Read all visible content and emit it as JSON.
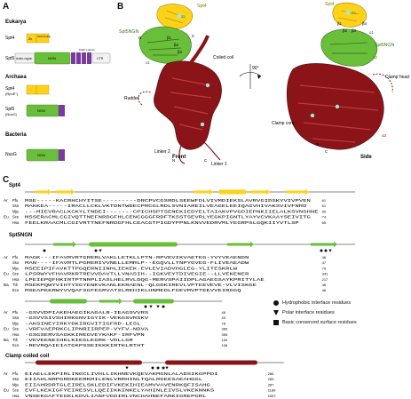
{
  "panelA": {
    "letter": "A",
    "eukarya": {
      "heading": "Eukarya",
      "spt4": {
        "name": "Spt4",
        "zn": "Zn",
        "ngn_binding": "NGN binding"
      },
      "spt5": {
        "name": "Spt5",
        "acidic": "Acidic region",
        "ngn": "NGN",
        "kow": "KOW 1-4(1-4)",
        "ctr": "CTR"
      }
    },
    "archaea": {
      "heading": "Archaea",
      "spt4": {
        "name": "Spt4",
        "alt": "(RpoE\")"
      },
      "spt5": {
        "name": "Spt5",
        "alt": "(NusG)",
        "ngn": "NGN"
      }
    },
    "bacteria": {
      "heading": "Bacteria",
      "nusg": {
        "name": "NusG",
        "ngn": "NGN"
      }
    }
  },
  "panelB": {
    "letter": "B",
    "front": {
      "caption": "Front",
      "labels": [
        "Spt4",
        "Zn",
        "Spt5NGN",
        "Coiled coil",
        "Rudder",
        "rClamp",
        "Linker 2",
        "Linker 1",
        "N",
        "C",
        "C",
        "N",
        "β1",
        "β2",
        "β3",
        "α1",
        "α8",
        "α9"
      ]
    },
    "rotation": "90°",
    "side": {
      "caption": "Side",
      "labels": [
        "Spt4",
        "Zn",
        "Spt5NGN",
        "Clamp head",
        "Clamp core",
        "α4B",
        "α3",
        "α5",
        "α9",
        "α8",
        "β1",
        "β2",
        "β3",
        "β4",
        "α1",
        "α2",
        "N",
        "C"
      ]
    }
  },
  "panelC": {
    "letter": "C",
    "spt4": {
      "title": "Spt4",
      "rows": [
        {
          "grp": "Ar",
          "org": "Pfu",
          "seq": "MSE-----KACRHCHYITSE---------DRCPVCGSRDLSEEWFDLVIVMDIEKSLAVRVGIDSKYVIVPVEN",
          "end": "61"
        },
        {
          "grp": "",
          "org": "Sso",
          "seq": "MAKKEA-----IRACLLCKLVKTDNTWDECPRCGLRDLSVNIAREILVEAGELEEIQAGVHIVAKSVIVFNRD",
          "end": "61"
        },
        {
          "grp": "",
          "org": "Mja",
          "seq": "---MIEVRACLKCKYLTNDEI-------CPICHSPTSENEKIEDYELTAIAKVPVGDIEPNKIIELALKSVNSHNE",
          "end": "59"
        },
        {
          "grp": "Eu",
          "org": "Sce",
          "seq": "MSSERACMLCGIVQTTNEFNRDGFHLCENCGGGFRDFTKSSTSEVRLYEGKPIGNTLYAYVCVKAAYSEIVITG",
          "end": "74"
        },
        {
          "grp": "",
          "org": "Hsa",
          "seq": "FEELKRAACMLCGIVRTTNEFNRDGFHLCEACGTPIGDYPPNLKNVVEDRVMLYEGRPSLGQKIIYVTLSP",
          "end": "65"
        }
      ]
    },
    "spt5ngn": {
      "title": "Spt5NGN",
      "rows": [
        {
          "grp": "Ar",
          "org": "Pfu",
          "seq": "MAGK---IFAVRVRTGRERLVAKLLETKLLPTN-RPVEVIKVAETEG-YVYVEAENDN",
          "end": "46"
        },
        {
          "grp": "",
          "org": "Sso",
          "seq": "MAN----IFAVRTLPGRERIVVNELLEMRLP--EGQVLLTNPYGVEG-FLIVEAEADW",
          "end": "47"
        },
        {
          "grp": "",
          "org": "Mja",
          "seq": "MSEEIPIFAVKTTPGQERNIINHLIEKEK-EVLEVIADVHGLEG-YLITESKRLW",
          "end": "79"
        },
        {
          "grp": "Eu",
          "org": "Sce",
          "seq": "LPSRWYVFHAVRKRTREVVDAVTLLVNASIH--IGKVEYTDIVEGIE--LLVEKENER",
          "end": "341"
        },
        {
          "grp": "",
          "org": "Hsa",
          "seq": "LPEIEPQFHKIRTPTNRPLIASLHELRVLDQG-MERVSPAIIDPLAGAEGSAYKPRITYLAE",
          "end": "217"
        },
        {
          "grp": "Ba",
          "org": "Tth",
          "seq": "MSEKPQWYVIHTYSGYENKVKANLEKRAENL-QLGDKIREVLVPTEEVEVE-VLVISKGE",
          "end": "46"
        },
        {
          "grp": "",
          "org": "Eco",
          "seq": "MSEAPKKRWYVVQAFSGFEGRVATSLREHIKLHNMEDLFGEVMVPTEEVVEIRGGQ",
          "end": "46"
        }
      ],
      "rows2": [
        {
          "grp": "Ar",
          "org": "Pfu",
          "seq": "-GSVVDPIAKEHAEGIKAGALR-IEAGSVVRS",
          "end": "48"
        },
        {
          "grp": "",
          "org": "Sso",
          "seq": "-GSVVSIVSHIRKGNVIGYIK-VEKGSVRSKV",
          "end": "49"
        },
        {
          "grp": "",
          "org": "Mja",
          "seq": "-AKSINEYIRKYDKIRGVITIGFRD-LESL",
          "end": "78"
        },
        {
          "grp": "Eu",
          "org": "Sce",
          "seq": "-VRFVAEPRKCLIPNRIIRPEP-VYFV-NDVA",
          "end": "365"
        },
        {
          "grp": "",
          "org": "Hsa",
          "seq": "-GSGSERVSAGKKIREGVEYKAKF-IRFVPN",
          "end": "355"
        },
        {
          "grp": "Ba",
          "org": "Tth",
          "seq": "-VEVEENEIHKLKIEGLEGRK-VDLLGR",
          "end": "100"
        },
        {
          "grp": "",
          "org": "Eco",
          "seq": "-REVRQAIEIATGKPSSEIKKKIRTKLRTHT",
          "end": "106"
        }
      ]
    },
    "coil": {
      "title": "Clamp coiled coil",
      "rows": [
        {
          "grp": "Ar",
          "org": "Pfu",
          "seq": "EIAELLEKPIRLINGCLIVHLLIKHNEVKQEVAKMGNLALADSIKGPPDI",
          "end": "286"
        },
        {
          "grp": "",
          "org": "Sso",
          "seq": "EIIAHLNRPGRDKEERKMILENLVRRHINLTQALRGEESAEAHGGL",
          "end": "283"
        },
        {
          "grp": "",
          "org": "Mja",
          "seq": "EIIAHRDRTGLEIRELSKLEDIFVKEKIHIEAMVVAVENRKQFISAHG",
          "end": "287"
        },
        {
          "grp": "Eu",
          "org": "Sce",
          "seq": "EVFLKEKIGFYEIRESVLLQEIIKKINKELYAHINLEIVSLVKEKNNKS",
          "end": "1189"
        },
        {
          "grp": "",
          "org": "Hsa",
          "seq": "VNSEKGAFTEGKLKDVLIANFVGDIRLVNCHAHNEFARKIGREPGRL",
          "end": "1057"
        },
        {
          "grp": "Ba",
          "org": "Tth",
          "seq": "VFLARLFGRTSEPSSIEVLLAGLMIENLELAHLNKIIKLRVRRGEPMGRRL",
          "end": "237"
        },
        {
          "grp": "",
          "org": "Eco",
          "seq": "VLSGYKDEVENTHVLLENALSGTKELIHALIEIKQSKKEPVFVPMGI",
          "end": "248"
        }
      ]
    },
    "legend": {
      "circle": "Hydrophobic interface residues",
      "triangle": "Polar interface residues",
      "square": "Basic conserved surface residues"
    }
  },
  "colors": {
    "spt4_yellow": "#ffd21a",
    "spt5_green": "#6abf3a",
    "kow_purple": "#7b3aa0",
    "rnap_red": "#8a1418",
    "highlight_red": "#d02a2a",
    "zn_cyan": "#9eeadc"
  }
}
